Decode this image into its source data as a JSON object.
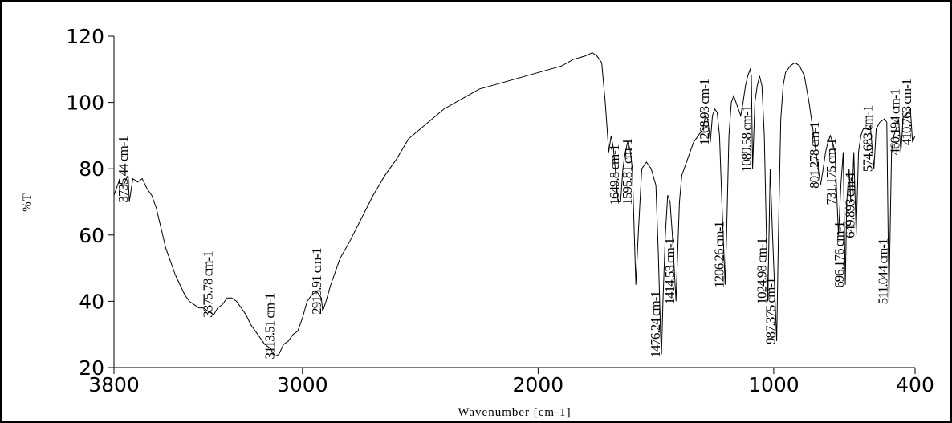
{
  "chart_data": {
    "type": "line",
    "x_label": "Wavenumber [cm-1]",
    "y_label": "%T",
    "xlim": [
      3800,
      400
    ],
    "ylim": [
      20,
      120
    ],
    "xticks": [
      3800,
      3000,
      2000,
      1000,
      400
    ],
    "yticks": [
      20,
      40,
      60,
      80,
      100,
      120
    ],
    "series": [
      {
        "name": "%T",
        "color": "#000000",
        "x": [
          3800,
          3780,
          3760,
          3740,
          3735,
          3720,
          3700,
          3680,
          3660,
          3640,
          3620,
          3600,
          3580,
          3560,
          3540,
          3520,
          3500,
          3480,
          3460,
          3440,
          3420,
          3400,
          3376,
          3360,
          3340,
          3320,
          3300,
          3280,
          3260,
          3240,
          3220,
          3200,
          3180,
          3160,
          3140,
          3120,
          3113.51,
          3100,
          3080,
          3060,
          3040,
          3020,
          3000,
          2980,
          2960,
          2940,
          2920,
          2913.91,
          2900,
          2880,
          2860,
          2840,
          2800,
          2750,
          2700,
          2650,
          2600,
          2550,
          2500,
          2450,
          2400,
          2350,
          2300,
          2250,
          2200,
          2150,
          2100,
          2050,
          2000,
          1950,
          1900,
          1850,
          1800,
          1770,
          1750,
          1730,
          1715,
          1700,
          1690,
          1680,
          1670,
          1660,
          1649.8,
          1640,
          1630,
          1620,
          1610,
          1600,
          1595.81,
          1585,
          1575,
          1560,
          1540,
          1520,
          1500,
          1490,
          1480,
          1476.24,
          1470,
          1460,
          1450,
          1440,
          1430,
          1414.53,
          1410,
          1400,
          1390,
          1380,
          1360,
          1340,
          1320,
          1300,
          1290,
          1280,
          1268.93,
          1260,
          1250,
          1240,
          1230,
          1220,
          1206.26,
          1200,
          1190,
          1180,
          1170,
          1160,
          1150,
          1140,
          1130,
          1120,
          1110,
          1100,
          1095,
          1089.58,
          1080,
          1070,
          1060,
          1050,
          1040,
          1024.98,
          1015,
          1005,
          987.375,
          980,
          970,
          960,
          950,
          930,
          910,
          890,
          870,
          850,
          830,
          815,
          801.278,
          790,
          780,
          770,
          760,
          750,
          740,
          731.175,
          725,
          715,
          705,
          696.176,
          690,
          680,
          673,
          668,
          660,
          649.893,
          640,
          630,
          620,
          600,
          590,
          574.683,
          565,
          550,
          530,
          520,
          511.044,
          500,
          490,
          480,
          470,
          460.194,
          450,
          440,
          430,
          420,
          410.763,
          400
        ],
        "values": [
          72,
          76,
          75,
          78,
          70,
          77,
          76,
          77,
          74,
          72,
          68,
          62,
          56,
          52,
          48,
          45,
          42,
          40,
          39,
          38,
          38,
          37,
          36,
          38,
          39,
          41,
          41,
          40,
          38,
          36,
          33,
          31,
          29,
          27,
          26,
          24,
          23.5,
          24,
          27,
          28,
          30,
          31,
          35,
          40,
          42,
          43,
          41,
          37,
          40,
          45,
          49,
          53,
          58,
          65,
          72,
          78,
          83,
          89,
          92,
          95,
          98,
          100,
          102,
          104,
          105,
          106,
          107,
          108,
          109,
          110,
          111,
          113,
          114,
          115,
          114,
          112,
          100,
          85,
          90,
          86,
          78,
          70,
          70,
          80,
          85,
          88,
          86,
          80,
          70,
          45,
          60,
          80,
          82,
          80,
          75,
          55,
          30,
          24,
          40,
          60,
          72,
          70,
          60,
          40,
          50,
          70,
          78,
          80,
          84,
          88,
          90,
          92,
          96,
          95,
          88,
          96,
          98,
          97,
          90,
          70,
          45,
          60,
          90,
          100,
          102,
          100,
          98,
          96,
          100,
          105,
          108,
          110,
          108,
          80,
          100,
          105,
          108,
          105,
          90,
          40,
          80,
          60,
          28,
          60,
          95,
          105,
          109,
          111,
          112,
          111,
          108,
          100,
          90,
          82,
          75,
          80,
          85,
          88,
          90,
          88,
          85,
          70,
          60,
          75,
          85,
          45,
          70,
          80,
          70,
          70,
          85,
          60,
          85,
          90,
          92,
          92,
          93,
          80,
          92,
          94,
          95,
          94,
          40,
          85,
          90,
          92,
          95,
          85,
          96,
          96,
          97,
          98,
          88,
          90
        ]
      }
    ],
    "annotations": [
      {
        "x": 3735.44,
        "label": "3735.44 cm-1"
      },
      {
        "x": 3375.78,
        "label": "3375.78 cm-1"
      },
      {
        "x": 3113.51,
        "label": "3113.51 cm-1"
      },
      {
        "x": 2913.91,
        "label": "2913.91 cm-1"
      },
      {
        "x": 1649.8,
        "label": "1649.8 cm-1"
      },
      {
        "x": 1595.81,
        "label": "1595.81 cm-1"
      },
      {
        "x": 1476.24,
        "label": "1476.24 cm-1"
      },
      {
        "x": 1414.53,
        "label": "1414.53 cm-1"
      },
      {
        "x": 1268.93,
        "label": "1268.93 cm-1"
      },
      {
        "x": 1206.26,
        "label": "1206.26 cm-1"
      },
      {
        "x": 1089.58,
        "label": "1089.58 cm-1"
      },
      {
        "x": 1024.98,
        "label": "1024.98 cm-1"
      },
      {
        "x": 987.375,
        "label": "987.375 cm-1"
      },
      {
        "x": 801.278,
        "label": "801.278 cm-1"
      },
      {
        "x": 731.175,
        "label": "731.175 cm-1"
      },
      {
        "x": 696.176,
        "label": "696.176 cm-1"
      },
      {
        "x": 649.893,
        "label": "649.893 cm-1"
      },
      {
        "x": 574.683,
        "label": "574.683 cm-1"
      },
      {
        "x": 511.044,
        "label": "511.044 cm-1"
      },
      {
        "x": 460.194,
        "label": "460.194 cm-1"
      },
      {
        "x": 410.763,
        "label": "410.763 cm-1"
      }
    ]
  }
}
